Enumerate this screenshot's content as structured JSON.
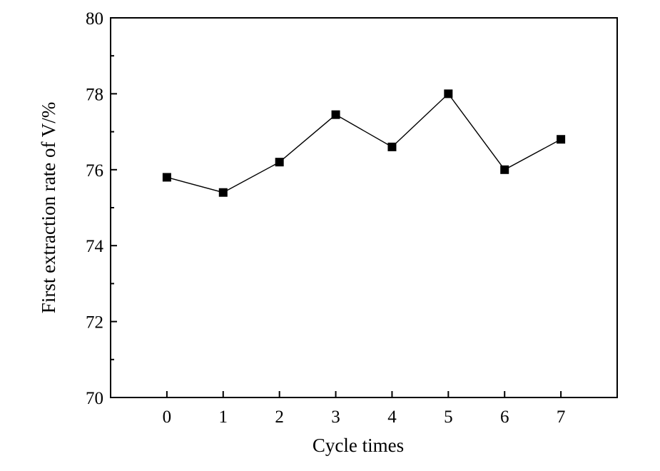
{
  "chart_data": {
    "type": "line",
    "title": "",
    "xlabel": "Cycle times",
    "ylabel": "First extraction rate of V/%",
    "x": [
      0,
      1,
      2,
      3,
      4,
      5,
      6,
      7
    ],
    "xticks": [
      "0",
      "1",
      "2",
      "3",
      "4",
      "5",
      "6",
      "7"
    ],
    "xlim": [
      -1,
      8
    ],
    "ylim": [
      70,
      80
    ],
    "yticks": [
      "70",
      "72",
      "74",
      "76",
      "78",
      "80"
    ],
    "grid": false,
    "legend": "none",
    "series": [
      {
        "values": [
          75.8,
          75.4,
          76.2,
          77.45,
          76.6,
          78.0,
          76.0,
          76.8
        ],
        "color": "#000000",
        "marker": "square"
      }
    ]
  }
}
